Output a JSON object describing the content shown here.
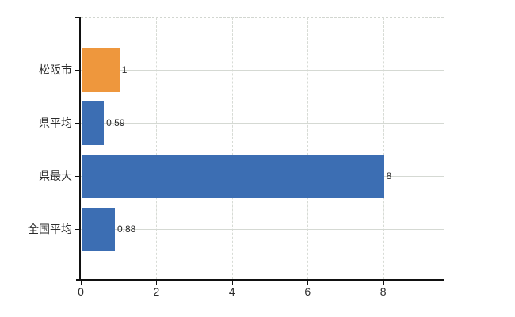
{
  "chart_data": {
    "type": "bar",
    "orientation": "horizontal",
    "title": "",
    "xlabel": "",
    "ylabel": "",
    "categories": [
      "松阪市",
      "県平均",
      "県最大",
      "全国平均"
    ],
    "values": [
      1,
      0.59,
      8,
      0.88
    ],
    "value_labels": [
      "1",
      "0.59",
      "8",
      "0.88"
    ],
    "bar_colors": [
      "#EE973D",
      "#3C6EB3",
      "#3C6EB3",
      "#3C6EB3"
    ],
    "highlight_category": "松阪市",
    "x_ticks": [
      0,
      2,
      4,
      6,
      8
    ],
    "x_tick_labels": [
      "0",
      "2",
      "4",
      "6",
      "8"
    ],
    "xlim": [
      0,
      9.6
    ],
    "grid": true,
    "legend": "none",
    "colors": {
      "highlight_bar": "#EE973D",
      "default_bar": "#3C6EB3",
      "grid": "#d5d9d3",
      "axis": "#111111",
      "text": "#2b2b2b",
      "background": "#ffffff"
    }
  }
}
